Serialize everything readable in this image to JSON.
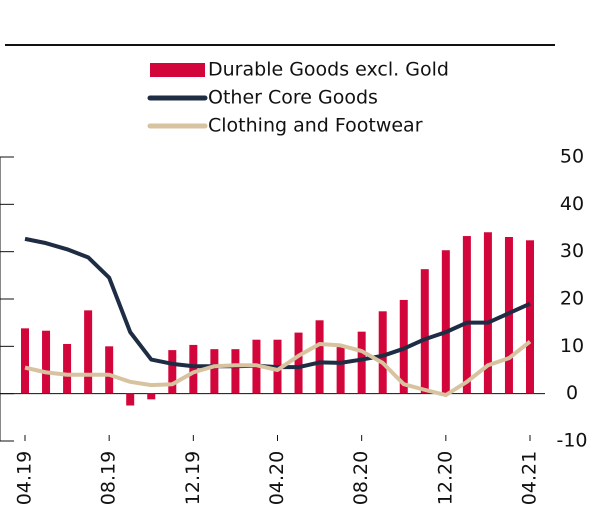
{
  "chart_data": {
    "type": "bar_line",
    "categories": [
      "04.19",
      null,
      null,
      null,
      "08.19",
      null,
      null,
      null,
      "12.19",
      null,
      null,
      null,
      "04.20",
      null,
      null,
      null,
      "08.20",
      null,
      null,
      null,
      "12.20",
      null,
      null,
      null,
      "04.21"
    ],
    "series": [
      {
        "name": "Durable Goods excl. Gold",
        "type": "bar",
        "color": "#d2063a",
        "values": [
          13.8,
          13.3,
          10.5,
          17.6,
          10,
          -2.5,
          -1.2,
          9.2,
          10.3,
          9.4,
          9.4,
          11.4,
          11.4,
          12.9,
          15.5,
          10.1,
          13.1,
          17.4,
          19.8,
          26.3,
          30.3,
          33.3,
          34.1,
          33.1,
          32.4
        ]
      },
      {
        "name": "Other Core Goods",
        "type": "line",
        "color": "#1e2d44",
        "values": [
          32.7,
          31.8,
          30.5,
          28.8,
          24.5,
          13,
          7.2,
          6.3,
          5.8,
          5.8,
          5.8,
          5.9,
          5.6,
          5.6,
          6.6,
          6.5,
          7.2,
          8,
          9.5,
          11.5,
          13,
          15,
          15,
          17,
          19
        ]
      },
      {
        "name": "Clothing and Footwear",
        "type": "line",
        "color": "#d8c3a0",
        "values": [
          5.5,
          4.5,
          4,
          4,
          4,
          2.5,
          1.8,
          2,
          4.5,
          5.8,
          6,
          6,
          5,
          8,
          10.5,
          10.2,
          9,
          6.5,
          2,
          0.8,
          -0.3,
          2.5,
          6,
          7.5,
          11
        ]
      }
    ],
    "ylim": [
      -10,
      50
    ],
    "yticks": [
      -10,
      0,
      10,
      20,
      30,
      40,
      50
    ]
  }
}
